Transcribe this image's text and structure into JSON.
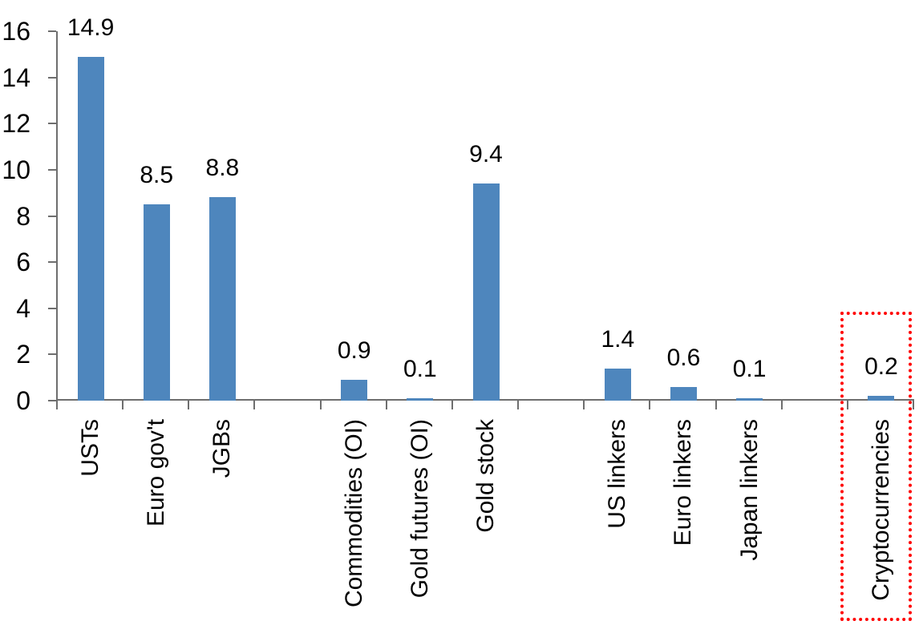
{
  "chart_data": {
    "type": "bar",
    "title": "",
    "categories": [
      "USTs",
      "Euro gov't",
      "JGBs",
      "Commodities (OI)",
      "Gold futures (OI)",
      "Gold stock",
      "US linkers",
      "Euro linkers",
      "Japan linkers",
      "Cryptocurrencies"
    ],
    "values": [
      14.9,
      8.5,
      8.8,
      0.9,
      0.1,
      9.4,
      1.4,
      0.6,
      0.1,
      0.2
    ],
    "value_labels": [
      "14.9",
      "8.5",
      "8.8",
      "0.9",
      "0.1",
      "9.4",
      "1.4",
      "0.6",
      "0.1",
      "0.2"
    ],
    "xlabel": "",
    "ylabel": "",
    "ylim": [
      0,
      16
    ],
    "yticks": [
      "16",
      "14",
      "12",
      "10",
      "8",
      "6",
      "4",
      "2",
      "0"
    ],
    "ytick_values": [
      16,
      14,
      12,
      10,
      8,
      6,
      4,
      2,
      0
    ],
    "grid": false,
    "legend": false,
    "bar_color": "#4E86BD",
    "axis_color": "#6E6E6E",
    "text_color": "#000000",
    "category_label_rotation": -90,
    "category_slots": [
      0,
      1,
      2,
      4,
      5,
      6,
      8,
      9,
      10,
      12
    ],
    "total_slots": 13,
    "highlight": {
      "category": "Cryptocurrencies",
      "style": "red-dotted-box",
      "color": "#FF0000"
    }
  }
}
